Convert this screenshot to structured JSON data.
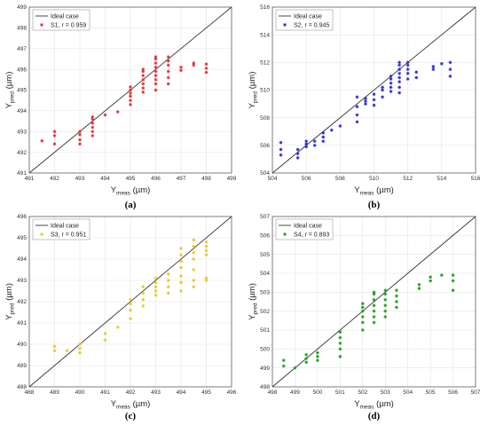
{
  "chart_data": [
    {
      "type": "scatter",
      "caption": "(a)",
      "color": "#e03030",
      "xlabel": {
        "main": "Y",
        "sub": "meas",
        "unit": " (µm)"
      },
      "ylabel": {
        "main": "Y",
        "sub": "pred",
        "unit": " (µm)"
      },
      "xlim": [
        491,
        499
      ],
      "ylim": [
        491,
        499
      ],
      "xticks": [
        "491",
        "492",
        "493",
        "494",
        "495",
        "496",
        "497",
        "498",
        "499"
      ],
      "yticks": [
        "491",
        "492",
        "493",
        "494",
        "495",
        "496",
        "497",
        "498",
        "499"
      ],
      "grid": true,
      "legend_position": "top-left",
      "legend": [
        {
          "label": "Ideal case",
          "kind": "line"
        },
        {
          "label": "S1, r = 0.959",
          "kind": "marker"
        }
      ],
      "points": [
        [
          491.5,
          492.55
        ],
        [
          492,
          492.4
        ],
        [
          492,
          492.8
        ],
        [
          492,
          493.0
        ],
        [
          493,
          492.4
        ],
        [
          493,
          492.6
        ],
        [
          493,
          492.85
        ],
        [
          493,
          493.0
        ],
        [
          493.5,
          492.8
        ],
        [
          493.5,
          493.0
        ],
        [
          493.5,
          493.2
        ],
        [
          493.5,
          493.4
        ],
        [
          493.5,
          493.6
        ],
        [
          493.5,
          493.7
        ],
        [
          494,
          493.8
        ],
        [
          494.5,
          493.95
        ],
        [
          495,
          494.3
        ],
        [
          495,
          494.5
        ],
        [
          495,
          494.7
        ],
        [
          495,
          494.85
        ],
        [
          495,
          495.0
        ],
        [
          495,
          495.15
        ],
        [
          495.5,
          494.9
        ],
        [
          495.5,
          495.1
        ],
        [
          495.5,
          495.3
        ],
        [
          495.5,
          495.5
        ],
        [
          495.5,
          495.7
        ],
        [
          495.5,
          495.9
        ],
        [
          495.5,
          496.0
        ],
        [
          496,
          495.0
        ],
        [
          496,
          495.3
        ],
        [
          496,
          495.5
        ],
        [
          496,
          495.7
        ],
        [
          496,
          495.9
        ],
        [
          496,
          496.1
        ],
        [
          496,
          496.3
        ],
        [
          496,
          496.5
        ],
        [
          496,
          496.6
        ],
        [
          496.5,
          495.3
        ],
        [
          496.5,
          495.6
        ],
        [
          496.5,
          495.9
        ],
        [
          496.5,
          496.2
        ],
        [
          496.5,
          496.4
        ],
        [
          496.5,
          496.6
        ],
        [
          497,
          495.95
        ],
        [
          497,
          496.1
        ],
        [
          497.5,
          496.2
        ],
        [
          497.5,
          496.3
        ],
        [
          498,
          495.85
        ],
        [
          498,
          496.05
        ],
        [
          498,
          496.25
        ]
      ]
    },
    {
      "type": "scatter",
      "caption": "(b)",
      "color": "#2a2ad0",
      "xlabel": {
        "main": "Y",
        "sub": "meas",
        "unit": " (µm)"
      },
      "ylabel": {
        "main": "Y",
        "sub": "pred",
        "unit": " (µm)"
      },
      "xlim": [
        504,
        516
      ],
      "ylim": [
        504,
        516
      ],
      "xticks": [
        "504",
        "506",
        "508",
        "510",
        "512",
        "514",
        "516"
      ],
      "yticks": [
        "504",
        "506",
        "508",
        "510",
        "512",
        "514",
        "516"
      ],
      "grid": true,
      "legend_position": "top-left",
      "legend": [
        {
          "label": "Ideal case",
          "kind": "line"
        },
        {
          "label": "S2, r = 0.945",
          "kind": "marker"
        }
      ],
      "points": [
        [
          504.5,
          505.3
        ],
        [
          504.5,
          505.7
        ],
        [
          504.5,
          506.2
        ],
        [
          505.5,
          505.1
        ],
        [
          505.5,
          505.4
        ],
        [
          505.5,
          505.7
        ],
        [
          506,
          505.9
        ],
        [
          506,
          506.1
        ],
        [
          506,
          506.3
        ],
        [
          506.5,
          506.0
        ],
        [
          506.5,
          506.3
        ],
        [
          507,
          506.3
        ],
        [
          507,
          506.6
        ],
        [
          507,
          506.9
        ],
        [
          507.5,
          507.1
        ],
        [
          508,
          507.4
        ],
        [
          509,
          507.7
        ],
        [
          509,
          508.2
        ],
        [
          509,
          508.8
        ],
        [
          509,
          509.5
        ],
        [
          509.5,
          509.0
        ],
        [
          509.5,
          509.2
        ],
        [
          509.5,
          509.4
        ],
        [
          510,
          508.9
        ],
        [
          510,
          509.3
        ],
        [
          510,
          509.7
        ],
        [
          510.5,
          509.5
        ],
        [
          510.5,
          510.0
        ],
        [
          510.5,
          510.2
        ],
        [
          511,
          509.9
        ],
        [
          511,
          510.2
        ],
        [
          511,
          510.5
        ],
        [
          511,
          510.8
        ],
        [
          511,
          511.0
        ],
        [
          511.5,
          509.8
        ],
        [
          511.5,
          510.2
        ],
        [
          511.5,
          510.6
        ],
        [
          511.5,
          510.9
        ],
        [
          511.5,
          511.2
        ],
        [
          511.5,
          511.5
        ],
        [
          511.5,
          511.8
        ],
        [
          511.5,
          512.0
        ],
        [
          512,
          510.8
        ],
        [
          512,
          511.2
        ],
        [
          512,
          511.5
        ],
        [
          512,
          511.8
        ],
        [
          512,
          512.0
        ],
        [
          512.5,
          510.9
        ],
        [
          512.5,
          511.3
        ],
        [
          513.5,
          511.5
        ],
        [
          513.5,
          511.7
        ],
        [
          514,
          511.9
        ],
        [
          514.5,
          511.0
        ],
        [
          514.5,
          511.5
        ],
        [
          514.5,
          512.0
        ]
      ]
    },
    {
      "type": "scatter",
      "caption": "(c)",
      "color": "#e8c820",
      "xlabel": {
        "main": "Y",
        "sub": "meas",
        "unit": " (µm)"
      },
      "ylabel": {
        "main": "Y",
        "sub": "pred",
        "unit": " (µm)"
      },
      "xlim": [
        488,
        496
      ],
      "ylim": [
        488,
        496
      ],
      "xticks": [
        "488",
        "489",
        "490",
        "491",
        "492",
        "493",
        "494",
        "495",
        "496"
      ],
      "yticks": [
        "488",
        "489",
        "490",
        "491",
        "492",
        "493",
        "494",
        "495",
        "496"
      ],
      "grid": true,
      "legend_position": "top-left",
      "legend": [
        {
          "label": "Ideal case",
          "kind": "line"
        },
        {
          "label": "S3, r = 0.951",
          "kind": "marker"
        }
      ],
      "points": [
        [
          489,
          489.7
        ],
        [
          489,
          489.9
        ],
        [
          489.5,
          489.7
        ],
        [
          490,
          489.6
        ],
        [
          490,
          489.8
        ],
        [
          490,
          490.0
        ],
        [
          491,
          490.2
        ],
        [
          491,
          490.5
        ],
        [
          491.5,
          490.8
        ],
        [
          492,
          491.2
        ],
        [
          492,
          491.6
        ],
        [
          492,
          491.9
        ],
        [
          492,
          492.1
        ],
        [
          492.5,
          491.8
        ],
        [
          492.5,
          492.1
        ],
        [
          492.5,
          492.4
        ],
        [
          492.5,
          492.7
        ],
        [
          493,
          492.3
        ],
        [
          493,
          492.5
        ],
        [
          493,
          492.7
        ],
        [
          493,
          492.9
        ],
        [
          493,
          493.1
        ],
        [
          493.5,
          492.4
        ],
        [
          493.5,
          492.7
        ],
        [
          493.5,
          493.0
        ],
        [
          493.5,
          493.3
        ],
        [
          494,
          492.5
        ],
        [
          494,
          492.9
        ],
        [
          494,
          493.2
        ],
        [
          494,
          493.6
        ],
        [
          494,
          493.9
        ],
        [
          494,
          494.2
        ],
        [
          494,
          494.5
        ],
        [
          494.5,
          492.7
        ],
        [
          494.5,
          493.0
        ],
        [
          494.5,
          493.5
        ],
        [
          494.5,
          494.0
        ],
        [
          494.5,
          494.3
        ],
        [
          494.5,
          494.6
        ],
        [
          494.5,
          494.9
        ],
        [
          495,
          493.0
        ],
        [
          495,
          493.1
        ],
        [
          495,
          494.2
        ],
        [
          495,
          494.4
        ],
        [
          495,
          494.6
        ],
        [
          495,
          494.8
        ]
      ]
    },
    {
      "type": "scatter",
      "caption": "(d)",
      "color": "#1f9a1f",
      "xlabel": {
        "main": "Y",
        "sub": "meas",
        "unit": " (µm)"
      },
      "ylabel": {
        "main": "Y",
        "sub": "pred",
        "unit": " (µm)"
      },
      "xlim": [
        498,
        507
      ],
      "ylim": [
        498,
        507
      ],
      "xticks": [
        "498",
        "499",
        "500",
        "501",
        "502",
        "503",
        "504",
        "505",
        "506",
        "507"
      ],
      "yticks": [
        "498",
        "499",
        "500",
        "501",
        "502",
        "503",
        "504",
        "505",
        "506",
        "507"
      ],
      "grid": true,
      "legend_position": "top-left",
      "legend": [
        {
          "label": "Ideal case",
          "kind": "line"
        },
        {
          "label": "S4, r = 0.893",
          "kind": "marker"
        }
      ],
      "points": [
        [
          498.5,
          499.1
        ],
        [
          498.5,
          499.4
        ],
        [
          499,
          499.0
        ],
        [
          499.5,
          499.3
        ],
        [
          499.5,
          499.5
        ],
        [
          499.5,
          499.7
        ],
        [
          500,
          499.4
        ],
        [
          500,
          499.6
        ],
        [
          500,
          499.8
        ],
        [
          501,
          499.6
        ],
        [
          501,
          500.0
        ],
        [
          501,
          500.3
        ],
        [
          501,
          500.6
        ],
        [
          501,
          500.9
        ],
        [
          502,
          501.0
        ],
        [
          502,
          501.4
        ],
        [
          502,
          501.7
        ],
        [
          502,
          502.0
        ],
        [
          502,
          502.2
        ],
        [
          502,
          502.4
        ],
        [
          502.5,
          501.4
        ],
        [
          502.5,
          501.7
        ],
        [
          502.5,
          502.0
        ],
        [
          502.5,
          502.3
        ],
        [
          502.5,
          502.6
        ],
        [
          502.5,
          502.9
        ],
        [
          502.5,
          503.0
        ],
        [
          503,
          501.7
        ],
        [
          503,
          502.0
        ],
        [
          503,
          502.3
        ],
        [
          503,
          502.6
        ],
        [
          503,
          502.9
        ],
        [
          503,
          503.1
        ],
        [
          503.5,
          502.2
        ],
        [
          503.5,
          502.5
        ],
        [
          503.5,
          502.8
        ],
        [
          503.5,
          503.1
        ],
        [
          504.5,
          503.2
        ],
        [
          504.5,
          503.4
        ],
        [
          505,
          503.6
        ],
        [
          505,
          503.8
        ],
        [
          505.5,
          503.9
        ],
        [
          506,
          503.1
        ],
        [
          506,
          503.6
        ],
        [
          506,
          503.9
        ]
      ]
    }
  ]
}
